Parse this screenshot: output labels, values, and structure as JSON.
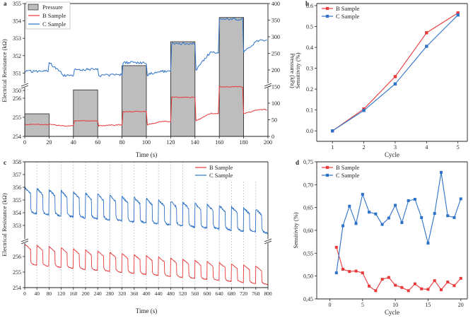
{
  "chart_data": [
    {
      "panel": "a",
      "type": "line",
      "title": "",
      "xlabel": "Time (s)",
      "ylabel": "Electrical Resistance (kΩ)",
      "y2label": "Pressure (kPa)",
      "xlim": [
        0,
        200
      ],
      "xticks": [
        0,
        20,
        40,
        60,
        80,
        100,
        120,
        140,
        160,
        180,
        200
      ],
      "ylim_upper": [
        350,
        355
      ],
      "yticks_upper": [
        350,
        351,
        352,
        353,
        354,
        355
      ],
      "ylim_lower": [
        254,
        257
      ],
      "yticks_lower": [
        254,
        255,
        256
      ],
      "y2lim": [
        0,
        400
      ],
      "y2ticks": [
        0,
        50,
        100,
        150,
        200,
        250,
        300,
        350,
        400
      ],
      "legend": [
        "Pressure",
        "B Sample",
        "C Sample"
      ],
      "pressure_bars": [
        {
          "start": 0,
          "end": 20,
          "value": 68
        },
        {
          "start": 40,
          "end": 60,
          "value": 140
        },
        {
          "start": 80,
          "end": 100,
          "value": 213
        },
        {
          "start": 120,
          "end": 140,
          "value": 285
        },
        {
          "start": 160,
          "end": 180,
          "value": 358
        }
      ],
      "series": [
        {
          "name": "B Sample",
          "color": "#e8393b",
          "x": [
            0,
            20,
            40,
            60,
            80,
            100,
            120,
            140,
            160,
            180,
            200
          ],
          "loaded": [
            254.62,
            254.82,
            255.3,
            256.05,
            256.6
          ],
          "unloaded": [
            254.62,
            254.55,
            254.6,
            254.78,
            255.2,
            255.4
          ]
        },
        {
          "name": "C Sample",
          "color": "#2d72c8",
          "loaded": [
            351.1,
            351.2,
            351.6,
            352.7,
            354.1
          ],
          "unloaded": [
            351.6,
            350.85,
            350.9,
            351.1,
            352.2,
            352.9
          ]
        }
      ]
    },
    {
      "panel": "b",
      "type": "line",
      "xlabel": "Cycle",
      "ylabel": "Sensitivity (%)",
      "x": [
        1,
        2,
        3,
        4,
        5
      ],
      "xlim": [
        0.5,
        5.3
      ],
      "ylim": [
        -0.05,
        0.61
      ],
      "yticks": [
        "0.0",
        "0.1",
        "0.2",
        "0.3",
        "0.4",
        "0.5",
        "0.6"
      ],
      "legend": [
        "B Sample",
        "C Sample"
      ],
      "series": [
        {
          "name": "B Sample",
          "color": "#e8393b",
          "values": [
            0.0,
            0.105,
            0.26,
            0.47,
            0.565
          ]
        },
        {
          "name": "C Sample",
          "color": "#2d72c8",
          "values": [
            0.0,
            0.098,
            0.225,
            0.405,
            0.555
          ]
        }
      ]
    },
    {
      "panel": "c",
      "type": "line",
      "xlabel": "Time (s)",
      "ylabel": "Electrical Resistance (kΩ)",
      "xlim": [
        0,
        800
      ],
      "xticks": [
        0,
        40,
        80,
        120,
        160,
        200,
        240,
        280,
        320,
        360,
        400,
        440,
        480,
        520,
        560,
        600,
        640,
        680,
        720,
        760,
        800
      ],
      "ylim_upper": [
        352,
        358
      ],
      "yticks_upper": [
        353,
        354,
        355,
        356,
        357,
        358
      ],
      "ylim_lower": [
        254,
        257
      ],
      "yticks_lower": [
        254,
        255,
        256
      ],
      "legend": [
        "B Sample",
        "C Sample"
      ],
      "cycles": 20,
      "series": [
        {
          "name": "B Sample",
          "color": "#e8393b",
          "high_start": 256.8,
          "high_end": 255.3,
          "low_start": 255.5,
          "low_end": 254.2
        },
        {
          "name": "C Sample",
          "color": "#2d72c8",
          "high_start": 356.0,
          "high_end": 354.2,
          "low_start": 354.0,
          "low_end": 352.4
        }
      ]
    },
    {
      "panel": "d",
      "type": "line",
      "xlabel": "Cycle",
      "ylabel": "Sensitivity (%)",
      "xlim": [
        -2,
        21
      ],
      "xticks": [
        0,
        5,
        10,
        15,
        20
      ],
      "ylim": [
        0.45,
        0.75
      ],
      "yticks": [
        "0,45",
        "0,50",
        "0,55",
        "0,60",
        "0,65",
        "0,70",
        "0,75"
      ],
      "legend": [
        "B Sample",
        "C Sample"
      ],
      "x": [
        1,
        2,
        3,
        4,
        5,
        6,
        7,
        8,
        9,
        10,
        11,
        12,
        13,
        14,
        15,
        16,
        17,
        18,
        19,
        20
      ],
      "series": [
        {
          "name": "B Sample",
          "color": "#e8393b",
          "values": [
            0.563,
            0.515,
            0.51,
            0.511,
            0.507,
            0.478,
            0.468,
            0.493,
            0.497,
            0.48,
            0.475,
            0.468,
            0.483,
            0.472,
            0.471,
            0.49,
            0.47,
            0.487,
            0.479,
            0.495
          ]
        },
        {
          "name": "C Sample",
          "color": "#2d72c8",
          "values": [
            0.507,
            0.61,
            0.653,
            0.615,
            0.679,
            0.64,
            0.636,
            0.613,
            0.627,
            0.655,
            0.617,
            0.665,
            0.668,
            0.628,
            0.572,
            0.637,
            0.727,
            0.632,
            0.628,
            0.669
          ]
        }
      ]
    }
  ]
}
